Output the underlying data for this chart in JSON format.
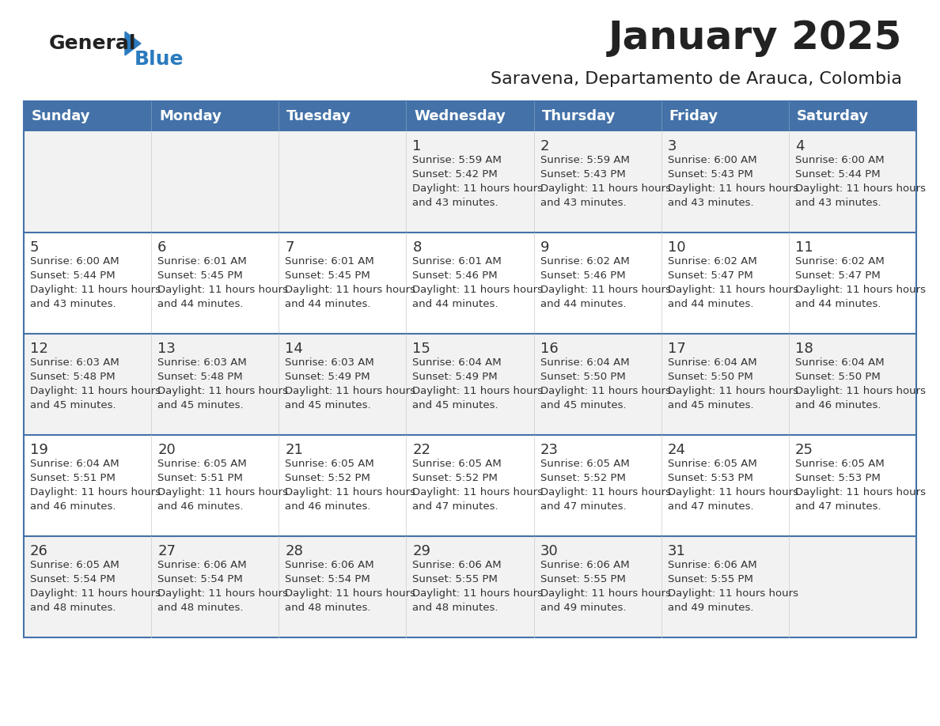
{
  "title": "January 2025",
  "subtitle": "Saravena, Departamento de Arauca, Colombia",
  "days_of_week": [
    "Sunday",
    "Monday",
    "Tuesday",
    "Wednesday",
    "Thursday",
    "Friday",
    "Saturday"
  ],
  "header_bg": "#4472a8",
  "header_text_color": "#ffffff",
  "row_bg_odd": "#f2f2f2",
  "row_bg_even": "#ffffff",
  "row_separator_color": "#4472a8",
  "day_number_color": "#333333",
  "cell_text_color": "#333333",
  "calendar_data": [
    [
      null,
      null,
      null,
      {
        "day": 1,
        "sunrise": "5:59 AM",
        "sunset": "5:42 PM",
        "daylight": "11 hours and 43 minutes."
      },
      {
        "day": 2,
        "sunrise": "5:59 AM",
        "sunset": "5:43 PM",
        "daylight": "11 hours and 43 minutes."
      },
      {
        "day": 3,
        "sunrise": "6:00 AM",
        "sunset": "5:43 PM",
        "daylight": "11 hours and 43 minutes."
      },
      {
        "day": 4,
        "sunrise": "6:00 AM",
        "sunset": "5:44 PM",
        "daylight": "11 hours and 43 minutes."
      }
    ],
    [
      {
        "day": 5,
        "sunrise": "6:00 AM",
        "sunset": "5:44 PM",
        "daylight": "11 hours and 43 minutes."
      },
      {
        "day": 6,
        "sunrise": "6:01 AM",
        "sunset": "5:45 PM",
        "daylight": "11 hours and 44 minutes."
      },
      {
        "day": 7,
        "sunrise": "6:01 AM",
        "sunset": "5:45 PM",
        "daylight": "11 hours and 44 minutes."
      },
      {
        "day": 8,
        "sunrise": "6:01 AM",
        "sunset": "5:46 PM",
        "daylight": "11 hours and 44 minutes."
      },
      {
        "day": 9,
        "sunrise": "6:02 AM",
        "sunset": "5:46 PM",
        "daylight": "11 hours and 44 minutes."
      },
      {
        "day": 10,
        "sunrise": "6:02 AM",
        "sunset": "5:47 PM",
        "daylight": "11 hours and 44 minutes."
      },
      {
        "day": 11,
        "sunrise": "6:02 AM",
        "sunset": "5:47 PM",
        "daylight": "11 hours and 44 minutes."
      }
    ],
    [
      {
        "day": 12,
        "sunrise": "6:03 AM",
        "sunset": "5:48 PM",
        "daylight": "11 hours and 45 minutes."
      },
      {
        "day": 13,
        "sunrise": "6:03 AM",
        "sunset": "5:48 PM",
        "daylight": "11 hours and 45 minutes."
      },
      {
        "day": 14,
        "sunrise": "6:03 AM",
        "sunset": "5:49 PM",
        "daylight": "11 hours and 45 minutes."
      },
      {
        "day": 15,
        "sunrise": "6:04 AM",
        "sunset": "5:49 PM",
        "daylight": "11 hours and 45 minutes."
      },
      {
        "day": 16,
        "sunrise": "6:04 AM",
        "sunset": "5:50 PM",
        "daylight": "11 hours and 45 minutes."
      },
      {
        "day": 17,
        "sunrise": "6:04 AM",
        "sunset": "5:50 PM",
        "daylight": "11 hours and 45 minutes."
      },
      {
        "day": 18,
        "sunrise": "6:04 AM",
        "sunset": "5:50 PM",
        "daylight": "11 hours and 46 minutes."
      }
    ],
    [
      {
        "day": 19,
        "sunrise": "6:04 AM",
        "sunset": "5:51 PM",
        "daylight": "11 hours and 46 minutes."
      },
      {
        "day": 20,
        "sunrise": "6:05 AM",
        "sunset": "5:51 PM",
        "daylight": "11 hours and 46 minutes."
      },
      {
        "day": 21,
        "sunrise": "6:05 AM",
        "sunset": "5:52 PM",
        "daylight": "11 hours and 46 minutes."
      },
      {
        "day": 22,
        "sunrise": "6:05 AM",
        "sunset": "5:52 PM",
        "daylight": "11 hours and 47 minutes."
      },
      {
        "day": 23,
        "sunrise": "6:05 AM",
        "sunset": "5:52 PM",
        "daylight": "11 hours and 47 minutes."
      },
      {
        "day": 24,
        "sunrise": "6:05 AM",
        "sunset": "5:53 PM",
        "daylight": "11 hours and 47 minutes."
      },
      {
        "day": 25,
        "sunrise": "6:05 AM",
        "sunset": "5:53 PM",
        "daylight": "11 hours and 47 minutes."
      }
    ],
    [
      {
        "day": 26,
        "sunrise": "6:05 AM",
        "sunset": "5:54 PM",
        "daylight": "11 hours and 48 minutes."
      },
      {
        "day": 27,
        "sunrise": "6:06 AM",
        "sunset": "5:54 PM",
        "daylight": "11 hours and 48 minutes."
      },
      {
        "day": 28,
        "sunrise": "6:06 AM",
        "sunset": "5:54 PM",
        "daylight": "11 hours and 48 minutes."
      },
      {
        "day": 29,
        "sunrise": "6:06 AM",
        "sunset": "5:55 PM",
        "daylight": "11 hours and 48 minutes."
      },
      {
        "day": 30,
        "sunrise": "6:06 AM",
        "sunset": "5:55 PM",
        "daylight": "11 hours and 49 minutes."
      },
      {
        "day": 31,
        "sunrise": "6:06 AM",
        "sunset": "5:55 PM",
        "daylight": "11 hours and 49 minutes."
      },
      null
    ]
  ],
  "logo_text_general": "General",
  "logo_text_blue": "Blue",
  "logo_color_general": "#222222",
  "logo_color_blue": "#2b7bbf"
}
